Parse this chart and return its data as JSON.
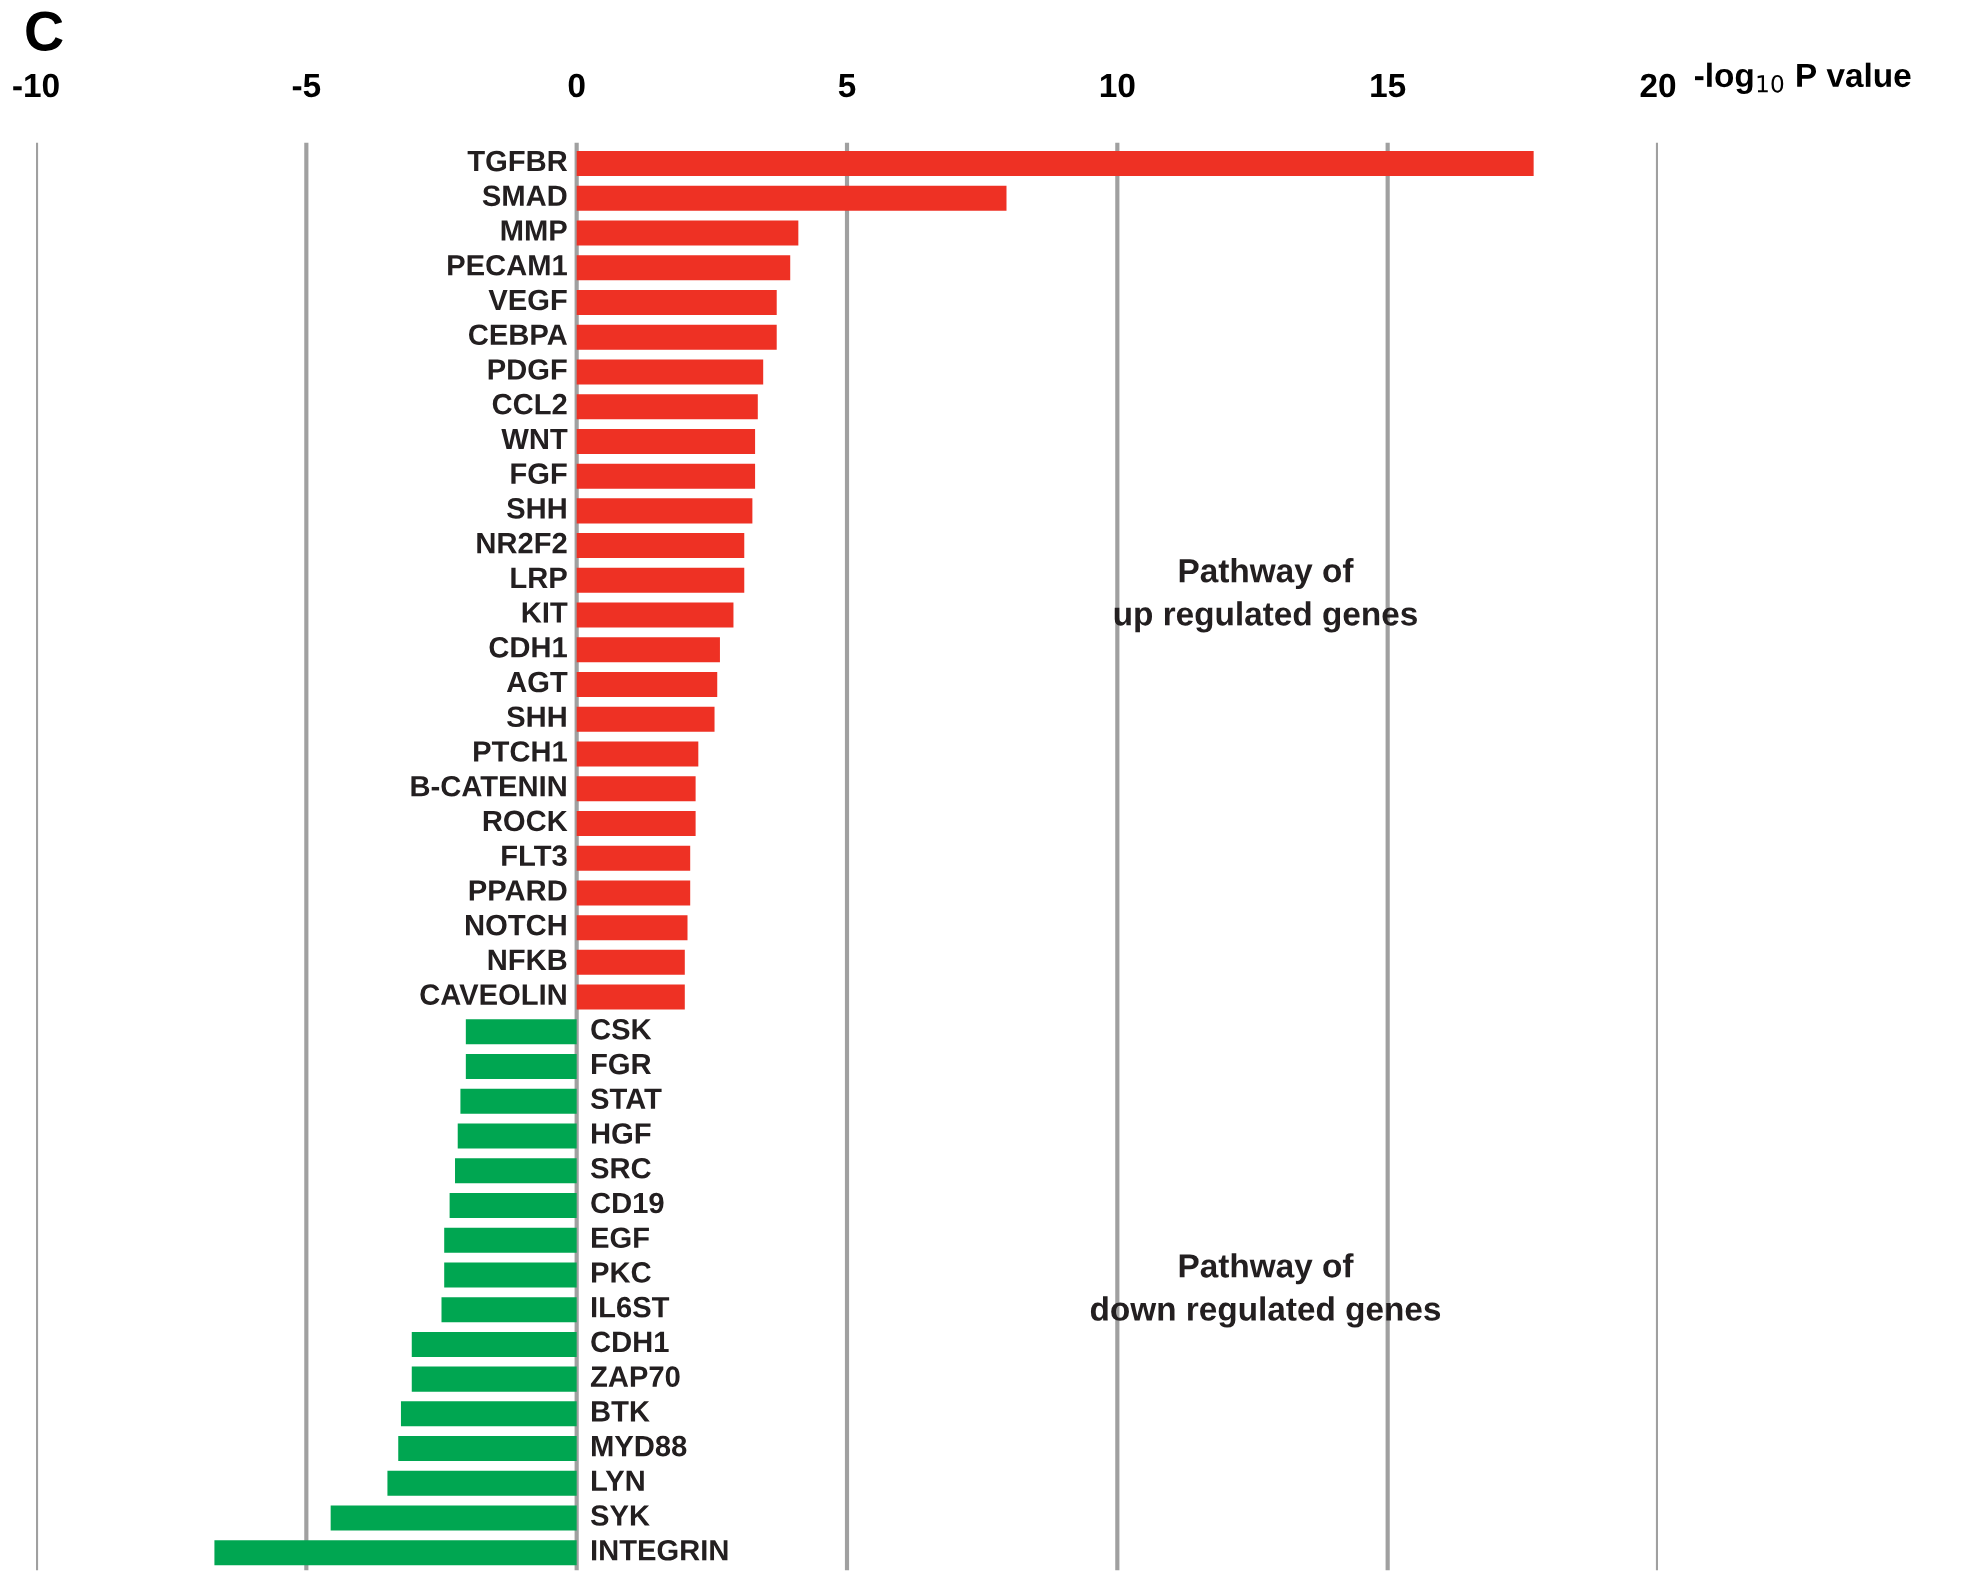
{
  "chart_data": {
    "type": "bar",
    "orientation": "horizontal",
    "title": "C",
    "xlabel": "-log$_{10}$ P value",
    "categories": [
      "TGFBR",
      "SMAD",
      "MMP",
      "PECAM1",
      "VEGF",
      "CEBPA",
      "PDGF",
      "CCL2",
      "WNT",
      "FGF",
      "SHH",
      "NR2F2",
      "LRP",
      "KIT",
      "CDH1",
      "AGT",
      "SHH",
      "PTCH1",
      "B-CATENIN",
      "ROCK",
      "FLT3",
      "PPARD",
      "NOTCH",
      "NFKB",
      "CAVEOLIN",
      "CSK",
      "FGR",
      "STAT",
      "HGF",
      "SRC",
      "CD19",
      "EGF",
      "PKC",
      "IL6ST",
      "CDH1",
      "ZAP70",
      "BTK",
      "MYD88",
      "LYN",
      "SYK",
      "INTEGRIN"
    ],
    "values": [
      17.7,
      7.95,
      4.1,
      3.95,
      3.7,
      3.7,
      3.45,
      3.35,
      3.3,
      3.3,
      3.25,
      3.1,
      3.1,
      2.9,
      2.65,
      2.6,
      2.55,
      2.25,
      2.2,
      2.2,
      2.1,
      2.1,
      2.05,
      2.0,
      2.0,
      -2.05,
      -2.05,
      -2.15,
      -2.2,
      -2.25,
      -2.35,
      -2.45,
      -2.45,
      -2.5,
      -3.05,
      -3.05,
      -3.25,
      -3.3,
      -3.5,
      -4.55,
      -6.7
    ],
    "colors": [
      "#ee3124",
      "#ee3124",
      "#ee3124",
      "#ee3124",
      "#ee3124",
      "#ee3124",
      "#ee3124",
      "#ee3124",
      "#ee3124",
      "#ee3124",
      "#ee3124",
      "#ee3124",
      "#ee3124",
      "#ee3124",
      "#ee3124",
      "#ee3124",
      "#ee3124",
      "#ee3124",
      "#ee3124",
      "#ee3124",
      "#ee3124",
      "#ee3124",
      "#ee3124",
      "#ee3124",
      "#ee3124",
      "#00a651",
      "#00a651",
      "#00a651",
      "#00a651",
      "#00a651",
      "#00a651",
      "#00a651",
      "#00a651",
      "#00a651",
      "#00a651",
      "#00a651",
      "#00a651",
      "#00a651",
      "#00a651",
      "#00a651",
      "#00a651"
    ],
    "xlim": [
      -10,
      20
    ],
    "xticks": [
      -10,
      -5,
      0,
      5,
      10,
      15,
      20
    ],
    "grid": "x",
    "annotations": [
      "Pathway of\nup regulated genes",
      "Pathway of\ndown regulated genes"
    ]
  }
}
